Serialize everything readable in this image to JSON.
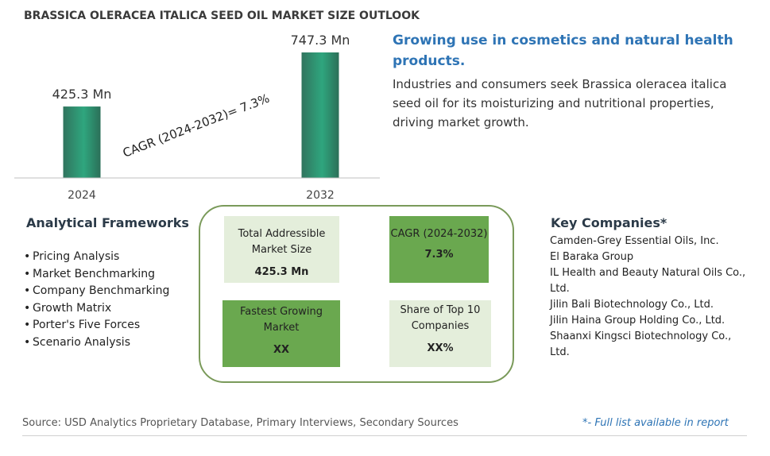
{
  "title": "BRASSICA OLERACEA ITALICA SEED OIL MARKET SIZE OUTLOOK",
  "chart_data": {
    "type": "bar",
    "categories": [
      "2024",
      "2032"
    ],
    "values": [
      425.3,
      747.3
    ],
    "value_labels": [
      "425.3 Mn",
      "747.3 Mn"
    ],
    "unit": "Mn",
    "annotation": "CAGR (2024-2032)=  7.3%",
    "bar_gradient": [
      "#30745e",
      "#2fa67e",
      "#2b6f58"
    ],
    "axis_color": "#bfbfbf"
  },
  "headline": "Growing use in cosmetics and natural health products.",
  "description": "Industries and consumers seek Brassica oleracea italica seed oil for its moisturizing and nutritional properties, driving market growth.",
  "frameworks": {
    "title": "Analytical Frameworks",
    "items": [
      "Pricing Analysis",
      "Market Benchmarking",
      "Company Benchmarking",
      "Growth Matrix",
      "Porter's Five Forces",
      "Scenario Analysis"
    ]
  },
  "cards": {
    "tam": {
      "label": "Total Addressible Market Size",
      "value": "425.3 Mn"
    },
    "cagr": {
      "label": "CAGR (2024-2032)",
      "value": "7.3%"
    },
    "fastest": {
      "label": "Fastest Growing Market",
      "value": "XX"
    },
    "share": {
      "label": "Share of Top 10 Companies",
      "value": "XX%"
    }
  },
  "key_companies": {
    "title": "Key Companies*",
    "items": [
      "Camden-Grey Essential Oils, Inc.",
      "El Baraka Group",
      "IL Health and Beauty Natural Oils Co., Ltd.",
      "Jilin Bali Biotechnology Co., Ltd.",
      "Jilin Haina Group Holding Co., Ltd.",
      "Shaanxi Kingsci Biotechnology Co., Ltd."
    ]
  },
  "source": "Source: USD Analytics Proprietary Database, Primary Interviews, Secondary Sources",
  "footnote": "*- Full list available in report",
  "colors": {
    "accent_blue": "#2e74b5",
    "panel_border": "#7a9a5a",
    "card_light": "#e4eedb",
    "card_dark": "#6aa84f"
  }
}
